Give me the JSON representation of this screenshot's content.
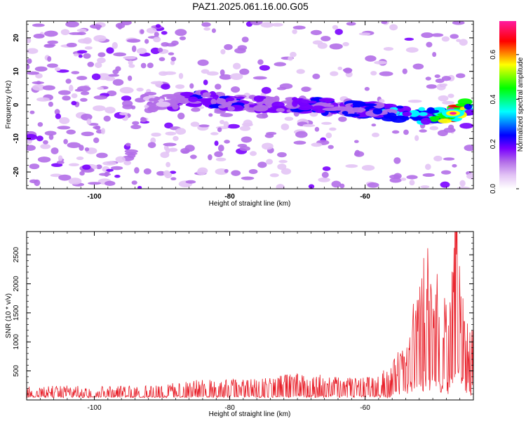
{
  "title": "PAZ1.2025.061.16.00.G05",
  "chart_data": [
    {
      "type": "heatmap",
      "xlabel": "Height of straight line (km)",
      "ylabel": "Frequency (Hz)",
      "xlim": [
        -110,
        -44
      ],
      "ylim": [
        -25,
        25
      ],
      "x_ticks": [
        -100,
        -80,
        -60
      ],
      "x_tick_labels": [
        "-100",
        "-80",
        "-60"
      ],
      "y_ticks": [
        -20,
        -10,
        0,
        10,
        20
      ],
      "y_tick_labels": [
        "-20",
        "-10",
        "0",
        "10",
        "20"
      ],
      "colorbar": {
        "label": "Normalized spectral amplitude",
        "range": [
          0,
          0.75
        ],
        "ticks": [
          0,
          0.2,
          0.4,
          0.6
        ],
        "tick_labels": [
          "0.0",
          "0.2",
          "0.4",
          "0.6"
        ],
        "colors": [
          "#ffffff",
          "#e3c4f5",
          "#b36ee8",
          "#7a00ff",
          "#0000ff",
          "#00ffff",
          "#00ff00",
          "#ffff00",
          "#ff0000",
          "#ff1aa0"
        ]
      },
      "ridge": {
        "description_points_x": [
          -90,
          -85,
          -80,
          -75,
          -70,
          -65,
          -60,
          -55,
          -50,
          -47,
          -44
        ],
        "frequency_hz": [
          0.5,
          2,
          0.8,
          0.2,
          0,
          -0.5,
          -1.5,
          -2.5,
          -3.5,
          -2.5,
          0
        ],
        "amplitude": [
          0.2,
          0.3,
          0.28,
          0.25,
          0.3,
          0.28,
          0.32,
          0.4,
          0.45,
          0.7,
          0.35
        ]
      }
    },
    {
      "type": "line",
      "xlabel": "Height of straight line (km)",
      "ylabel": "SNR (10 * v/v)",
      "xlim": [
        -110,
        -44
      ],
      "ylim": [
        0,
        2900
      ],
      "x_ticks": [
        -100,
        -80,
        -60
      ],
      "x_tick_labels": [
        "-100",
        "-80",
        "-60"
      ],
      "y_ticks": [
        500,
        1000,
        1500,
        2000,
        2500
      ],
      "y_tick_labels": [
        "500",
        "1000",
        "1500",
        "2000",
        "2500"
      ],
      "series": [
        {
          "color": "#e8202a",
          "x": [
            -110,
            -105,
            -100,
            -95,
            -90,
            -85,
            -80,
            -75,
            -70,
            -65,
            -60,
            -58,
            -56,
            -54,
            -53,
            -52,
            -51,
            -50,
            -49,
            -48,
            -47,
            -46.5,
            -46,
            -45,
            -44
          ],
          "y": [
            150,
            160,
            150,
            155,
            170,
            220,
            230,
            240,
            300,
            270,
            240,
            300,
            400,
            700,
            1100,
            1300,
            1700,
            1600,
            1400,
            1100,
            1800,
            2900,
            1300,
            900,
            800
          ]
        }
      ]
    }
  ]
}
